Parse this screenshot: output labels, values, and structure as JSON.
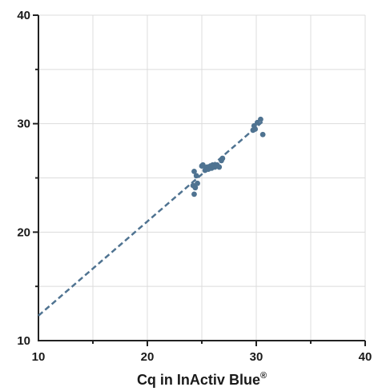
{
  "chart_data": {
    "type": "scatter",
    "title": "",
    "xlabel": "Cq in InActiv Blue",
    "xlabel_superscript": "®",
    "ylabel": "",
    "xlim": [
      10,
      40
    ],
    "ylim": [
      10,
      40
    ],
    "x_ticks": [
      10,
      20,
      30,
      40
    ],
    "y_ticks": [
      10,
      20,
      30,
      40
    ],
    "grid": true,
    "point_color": "#4f7391",
    "line_color": "#4f7391",
    "trendline": {
      "style": "dashed",
      "x": [
        10,
        30.6
      ],
      "y": [
        12.3,
        30.2
      ]
    },
    "series": [
      {
        "x": [
          24.2,
          24.3,
          24.3,
          24.4,
          24.5,
          24.6,
          25.0,
          25.1,
          25.3,
          25.4,
          25.5,
          25.6,
          25.8,
          25.9,
          26.0,
          26.2,
          26.4,
          26.6,
          26.8,
          26.9,
          29.7,
          29.8,
          29.9,
          30.1,
          30.4,
          30.6
        ],
        "y": [
          24.3,
          23.5,
          25.6,
          24.1,
          25.2,
          24.5,
          26.1,
          26.2,
          25.7,
          25.9,
          26.0,
          25.8,
          26.1,
          25.9,
          26.2,
          26.0,
          26.2,
          26.0,
          26.6,
          26.8,
          29.4,
          29.8,
          29.5,
          30.1,
          30.4,
          29.0
        ]
      }
    ]
  }
}
